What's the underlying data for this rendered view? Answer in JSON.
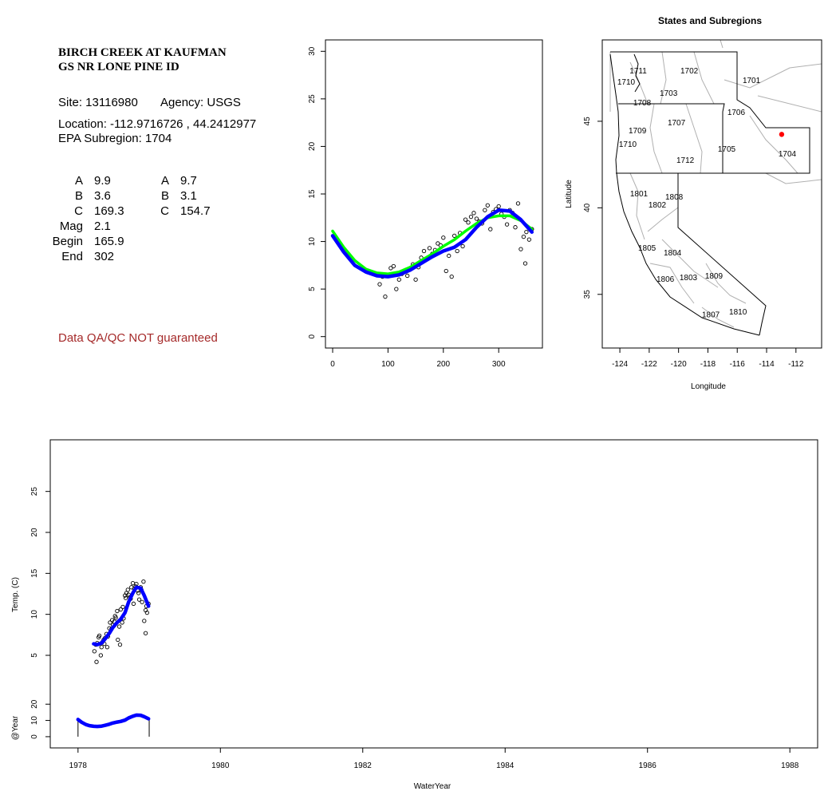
{
  "info": {
    "title": [
      "BIRCH CREEK AT KAUFMAN",
      "GS NR LONE PINE ID"
    ],
    "site": "Site: 13116980",
    "agency": "Agency: USGS",
    "location": "Location: -112.9716726 , 44.2412977",
    "subregion": "EPA Subregion: 1704",
    "params": [
      [
        "A",
        "9.9",
        "A",
        "9.7"
      ],
      [
        "B",
        "3.6",
        "B",
        "3.1"
      ],
      [
        "C",
        "169.3",
        "C",
        "154.7"
      ],
      [
        "Mag",
        "2.1"
      ],
      [
        "Begin",
        "165.9"
      ],
      [
        "End",
        "302"
      ]
    ],
    "note": "Data QA/QC NOT guaranteed"
  },
  "chart_data": [
    {
      "type": "scatter",
      "x": [
        85,
        90,
        95,
        100,
        105,
        110,
        115,
        120,
        125,
        130,
        135,
        140,
        145,
        150,
        155,
        160,
        165,
        170,
        175,
        180,
        185,
        190,
        195,
        200,
        205,
        210,
        215,
        220,
        225,
        230,
        235,
        240,
        245,
        250,
        255,
        260,
        265,
        270,
        275,
        280,
        285,
        290,
        295,
        300,
        305,
        310,
        315,
        320,
        325,
        330,
        335,
        340,
        345,
        348,
        350,
        355,
        360
      ],
      "values": [
        5.5,
        6.3,
        4.2,
        6.5,
        7.2,
        7.4,
        5.0,
        6.0,
        6.6,
        6.9,
        6.4,
        7.1,
        7.6,
        6.0,
        7.3,
        8.3,
        9.0,
        8.2,
        9.3,
        8.7,
        9.1,
        9.8,
        9.6,
        10.4,
        6.9,
        8.5,
        6.3,
        10.6,
        9.0,
        10.9,
        9.5,
        12.3,
        12.0,
        12.6,
        13.0,
        12.4,
        12.1,
        11.9,
        13.3,
        13.8,
        11.3,
        13.1,
        13.4,
        13.7,
        12.9,
        12.6,
        11.8,
        13.3,
        13.0,
        11.5,
        14.0,
        9.2,
        10.5,
        7.7,
        11.0,
        10.2,
        11.3
      ],
      "point_color": "#000000",
      "lines": [
        {
          "color": "#00ff00",
          "x": [
            0,
            20,
            40,
            60,
            80,
            100,
            120,
            140,
            160,
            180,
            200,
            220,
            240,
            260,
            280,
            300,
            320,
            340,
            360
          ],
          "values": [
            11.1,
            9.4,
            8.0,
            7.1,
            6.7,
            6.6,
            6.8,
            7.3,
            8.0,
            8.7,
            9.5,
            10.2,
            11.1,
            11.9,
            12.5,
            12.7,
            12.7,
            12.2,
            11.3
          ]
        },
        {
          "color": "#0000ff",
          "x": [
            0,
            20,
            40,
            60,
            80,
            100,
            120,
            140,
            160,
            180,
            200,
            220,
            240,
            260,
            280,
            300,
            320,
            340,
            360
          ],
          "values": [
            10.6,
            8.9,
            7.5,
            6.8,
            6.4,
            6.3,
            6.5,
            7.0,
            7.7,
            8.4,
            9.0,
            9.4,
            10.2,
            11.5,
            12.6,
            13.3,
            13.2,
            12.3,
            11.0
          ]
        }
      ],
      "xlim": [
        -13,
        379
      ],
      "ylim": [
        -1.2,
        31.2
      ],
      "xticks": [
        0,
        100,
        200,
        300
      ],
      "yticks": [
        0,
        5,
        10,
        15,
        20,
        25,
        30
      ]
    },
    {
      "type": "map",
      "title": "States and Subregions",
      "xlabel": "Longitude",
      "ylabel": "Latitude",
      "labels": [
        "1711",
        "1710",
        "1702",
        "1701",
        "1703",
        "1708",
        "1706",
        "1707",
        "1709",
        "1710",
        "1705",
        "1704",
        "1712",
        "1801",
        "1808",
        "1802",
        "1805",
        "1804",
        "1806",
        "1803",
        "1809",
        "1807",
        "1810"
      ],
      "lon": [
        -122.75,
        -123.57,
        -119.27,
        -115.03,
        -120.68,
        -122.48,
        -116.07,
        -120.14,
        -122.8,
        -123.46,
        -116.72,
        -112.59,
        -119.54,
        -122.7,
        -120.3,
        -121.45,
        -122.15,
        -120.41,
        -120.9,
        -119.33,
        -117.59,
        -117.8,
        -115.95
      ],
      "lat": [
        47.95,
        47.3,
        47.95,
        47.4,
        46.66,
        46.1,
        45.55,
        44.95,
        44.5,
        43.7,
        43.43,
        43.16,
        42.79,
        40.85,
        40.67,
        40.2,
        37.72,
        37.44,
        35.92,
        36.01,
        36.1,
        33.85,
        34.03
      ],
      "point": {
        "lon": -112.9716726,
        "lat": 44.2412977,
        "color": "#ff0000"
      },
      "xlim": [
        -125.2,
        -110.25
      ],
      "ylim": [
        31.9,
        49.7
      ],
      "xticks": [
        -124,
        -122,
        -120,
        -118,
        -116,
        -114,
        -112
      ],
      "yticks": [
        35,
        40,
        45
      ]
    },
    {
      "type": "timeseries",
      "xlabel": "WaterYear",
      "ylabel": "Temp. (C)",
      "x": [
        1978.23,
        1978.25,
        1978.26,
        1978.27,
        1978.29,
        1978.3,
        1978.32,
        1978.33,
        1978.34,
        1978.36,
        1978.37,
        1978.38,
        1978.4,
        1978.41,
        1978.42,
        1978.44,
        1978.45,
        1978.47,
        1978.48,
        1978.49,
        1978.51,
        1978.52,
        1978.53,
        1978.55,
        1978.56,
        1978.58,
        1978.59,
        1978.6,
        1978.62,
        1978.63,
        1978.64,
        1978.66,
        1978.67,
        1978.68,
        1978.7,
        1978.71,
        1978.73,
        1978.74,
        1978.75,
        1978.77,
        1978.78,
        1978.79,
        1978.81,
        1978.82,
        1978.84,
        1978.85,
        1978.86,
        1978.88,
        1978.89,
        1978.9,
        1978.92,
        1978.93,
        1978.95,
        1978.95,
        1978.96,
        1978.97,
        1978.99
      ],
      "values": [
        5.5,
        6.3,
        4.2,
        6.5,
        7.2,
        7.4,
        5.0,
        6.0,
        6.6,
        6.9,
        6.4,
        7.1,
        7.6,
        6.0,
        7.3,
        8.3,
        9.0,
        8.2,
        9.3,
        8.7,
        9.1,
        9.8,
        9.6,
        10.4,
        6.9,
        8.5,
        6.3,
        10.6,
        9.0,
        10.9,
        9.5,
        12.3,
        12.0,
        12.6,
        13.0,
        12.4,
        12.1,
        11.9,
        13.3,
        13.8,
        11.3,
        13.1,
        13.4,
        13.7,
        12.9,
        12.6,
        11.8,
        13.3,
        13.0,
        11.5,
        14.0,
        9.2,
        10.5,
        7.7,
        11.0,
        10.2,
        11.3
      ],
      "point_color": "#000000",
      "lines": [
        {
          "color": "#0000ff",
          "x": [
            1978.22,
            1978.27,
            1978.33,
            1978.38,
            1978.44,
            1978.49,
            1978.55,
            1978.6,
            1978.66,
            1978.71,
            1978.77,
            1978.82,
            1978.88,
            1978.93,
            1978.99
          ],
          "values": [
            6.4,
            6.3,
            6.5,
            7.0,
            7.7,
            8.4,
            9.0,
            9.4,
            10.2,
            11.5,
            12.6,
            13.3,
            13.2,
            12.3,
            11.0
          ]
        }
      ],
      "xlim": [
        1977.61,
        1988.39
      ],
      "ylim": [
        1.2,
        31.3
      ],
      "xticks": [
        1978,
        1980,
        1982,
        1984,
        1986,
        1988
      ],
      "yticks": [
        5,
        10,
        15,
        20,
        25
      ],
      "sub": {
        "ylabel": "@Year",
        "ylim": [
          -2,
          26
        ],
        "yticks": [
          0,
          10,
          20
        ],
        "markers": [
          1978,
          1979
        ],
        "lines": [
          {
            "color": "#0000ff",
            "x": [
              1978.0,
              1978.05,
              1978.11,
              1978.16,
              1978.22,
              1978.27,
              1978.33,
              1978.38,
              1978.44,
              1978.49,
              1978.55,
              1978.6,
              1978.66,
              1978.71,
              1978.77,
              1978.82,
              1978.88,
              1978.93,
              1978.99
            ],
            "values": [
              10.6,
              8.9,
              7.5,
              6.8,
              6.4,
              6.3,
              6.5,
              7.0,
              7.7,
              8.4,
              9.0,
              9.4,
              10.2,
              11.5,
              12.6,
              13.3,
              13.2,
              12.3,
              11.0
            ]
          }
        ]
      }
    }
  ]
}
